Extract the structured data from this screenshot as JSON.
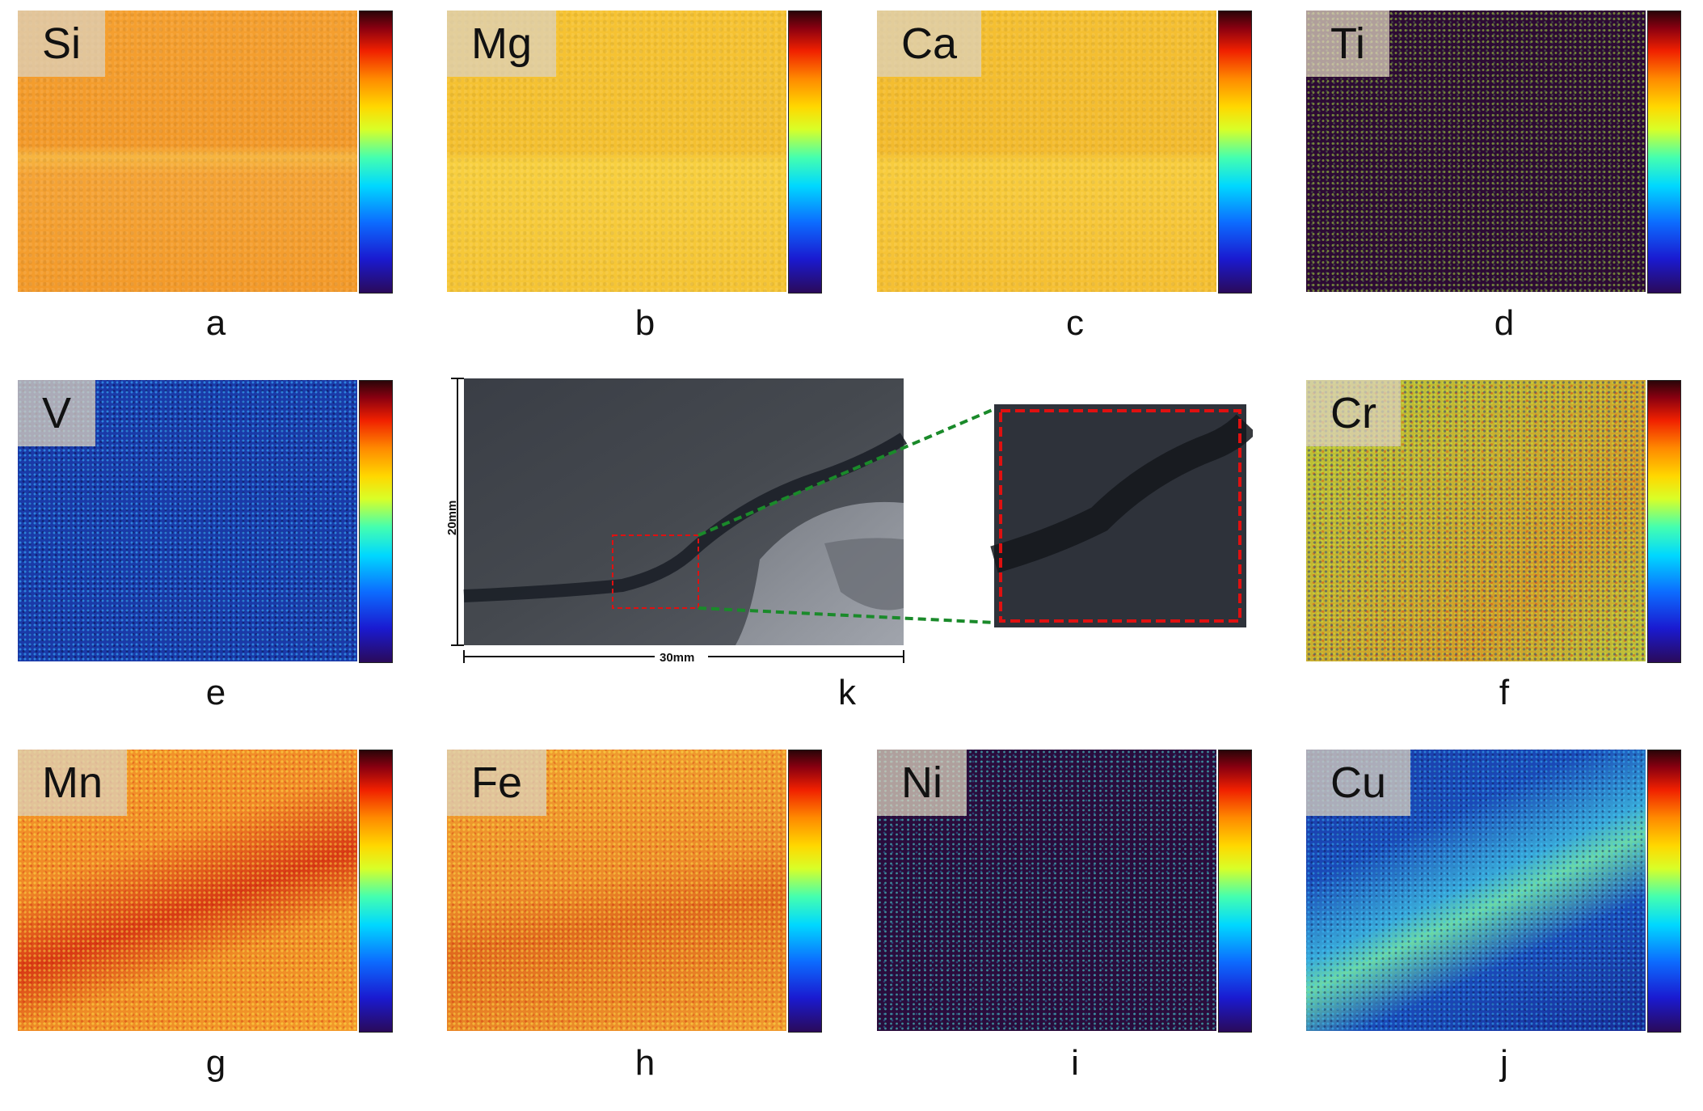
{
  "panels": [
    {
      "key": "a",
      "element": "Si"
    },
    {
      "key": "b",
      "element": "Mg"
    },
    {
      "key": "c",
      "element": "Ca"
    },
    {
      "key": "d",
      "element": "Ti"
    },
    {
      "key": "e",
      "element": "V"
    },
    {
      "key": "k",
      "element": ""
    },
    {
      "key": "f",
      "element": "Cr"
    },
    {
      "key": "g",
      "element": "Mn"
    },
    {
      "key": "h",
      "element": "Fe"
    },
    {
      "key": "i",
      "element": "Ni"
    },
    {
      "key": "j",
      "element": "Cu"
    }
  ],
  "photo": {
    "height_label": "20mm",
    "width_label": "30mm",
    "caption": "k",
    "roi_color": "#e01010",
    "connector_color": "#1a8a2a"
  },
  "colorbar": {
    "colormap": "jet",
    "stops": [
      "#2a0a5a",
      "#1a1ad0",
      "#0c6cff",
      "#00d8ff",
      "#44ffb0",
      "#d8ff28",
      "#ffd800",
      "#ff8a00",
      "#f02000",
      "#8a0010",
      "#2a0508"
    ]
  }
}
